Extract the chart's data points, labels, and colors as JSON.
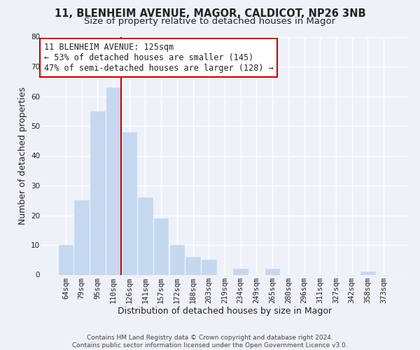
{
  "title": "11, BLENHEIM AVENUE, MAGOR, CALDICOT, NP26 3NB",
  "subtitle": "Size of property relative to detached houses in Magor",
  "xlabel": "Distribution of detached houses by size in Magor",
  "ylabel": "Number of detached properties",
  "bar_labels": [
    "64sqm",
    "79sqm",
    "95sqm",
    "110sqm",
    "126sqm",
    "141sqm",
    "157sqm",
    "172sqm",
    "188sqm",
    "203sqm",
    "219sqm",
    "234sqm",
    "249sqm",
    "265sqm",
    "280sqm",
    "296sqm",
    "311sqm",
    "327sqm",
    "342sqm",
    "358sqm",
    "373sqm"
  ],
  "bar_values": [
    10,
    25,
    55,
    63,
    48,
    26,
    19,
    10,
    6,
    5,
    0,
    2,
    0,
    2,
    0,
    0,
    0,
    0,
    0,
    1,
    0
  ],
  "bar_color": "#c5d8f0",
  "bar_edge_color": "#c5d8f0",
  "vline_index": 4,
  "vline_color": "#cc0000",
  "annotation_line1": "11 BLENHEIM AVENUE: 125sqm",
  "annotation_line2": "← 53% of detached houses are smaller (145)",
  "annotation_line3": "47% of semi-detached houses are larger (128) →",
  "annotation_box_color": "#ffffff",
  "annotation_box_edge": "#cc0000",
  "ylim": [
    0,
    80
  ],
  "yticks": [
    0,
    10,
    20,
    30,
    40,
    50,
    60,
    70,
    80
  ],
  "footer_text": "Contains HM Land Registry data © Crown copyright and database right 2024.\nContains public sector information licensed under the Open Government Licence v3.0.",
  "background_color": "#eef2f8",
  "grid_color": "#ffffff",
  "title_fontsize": 10.5,
  "subtitle_fontsize": 9.5,
  "axis_label_fontsize": 9,
  "tick_fontsize": 7.5,
  "annotation_fontsize": 8.5,
  "footer_fontsize": 6.5
}
